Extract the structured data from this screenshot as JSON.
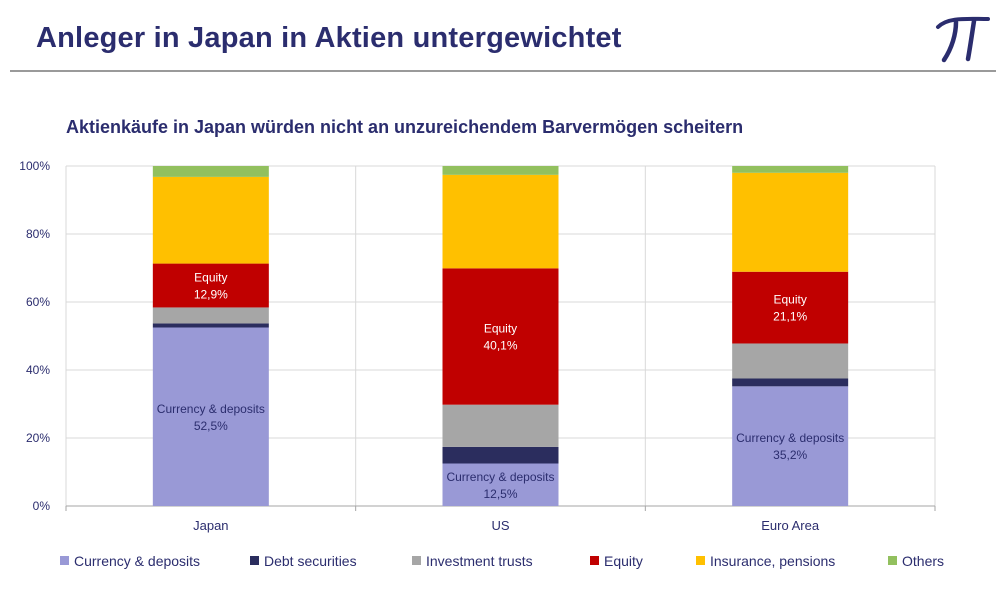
{
  "header": {
    "title": "Anleger in Japan in Aktien untergewichtet",
    "logo": "pi-icon"
  },
  "chart_data": {
    "type": "bar",
    "stacked": true,
    "title": "Aktienkäufe in Japan würden nicht an unzureichendem Barvermögen scheitern",
    "xlabel": "",
    "ylabel": "",
    "ylim": [
      0,
      100
    ],
    "yticks": [
      "0%",
      "20%",
      "40%",
      "60%",
      "80%",
      "100%"
    ],
    "grid": true,
    "legend_position": "bottom",
    "categories": [
      "Japan",
      "US",
      "Euro Area"
    ],
    "series": [
      {
        "name": "Currency & deposits",
        "color": "#9999d6",
        "values": [
          52.5,
          12.5,
          35.2
        ]
      },
      {
        "name": "Debt securities",
        "color": "#2b2d5e",
        "values": [
          1.2,
          4.9,
          2.3
        ]
      },
      {
        "name": "Investment trusts",
        "color": "#a6a6a6",
        "values": [
          4.7,
          12.4,
          10.3
        ]
      },
      {
        "name": "Equity",
        "color": "#c00000",
        "values": [
          12.9,
          40.1,
          21.1
        ]
      },
      {
        "name": "Insurance, pensions",
        "color": "#ffc000",
        "values": [
          25.5,
          27.5,
          29.1
        ]
      },
      {
        "name": "Others",
        "color": "#92c05e",
        "values": [
          3.2,
          2.6,
          2.0
        ]
      }
    ],
    "data_labels": [
      {
        "category": "Japan",
        "series": "Currency & deposits",
        "name": "Currency & deposits",
        "value": "52,5%",
        "text_color": "#2b2d6e"
      },
      {
        "category": "Japan",
        "series": "Equity",
        "name": "Equity",
        "value": "12,9%",
        "text_color": "#ffffff"
      },
      {
        "category": "US",
        "series": "Currency & deposits",
        "name": "Currency & deposits",
        "value": "12,5%",
        "text_color": "#2b2d6e"
      },
      {
        "category": "US",
        "series": "Equity",
        "name": "Equity",
        "value": "40,1%",
        "text_color": "#ffffff"
      },
      {
        "category": "Euro Area",
        "series": "Currency & deposits",
        "name": "Currency & deposits",
        "value": "35,2%",
        "text_color": "#2b2d6e"
      },
      {
        "category": "Euro Area",
        "series": "Equity",
        "name": "Equity",
        "value": "21,1%",
        "text_color": "#ffffff"
      }
    ]
  }
}
